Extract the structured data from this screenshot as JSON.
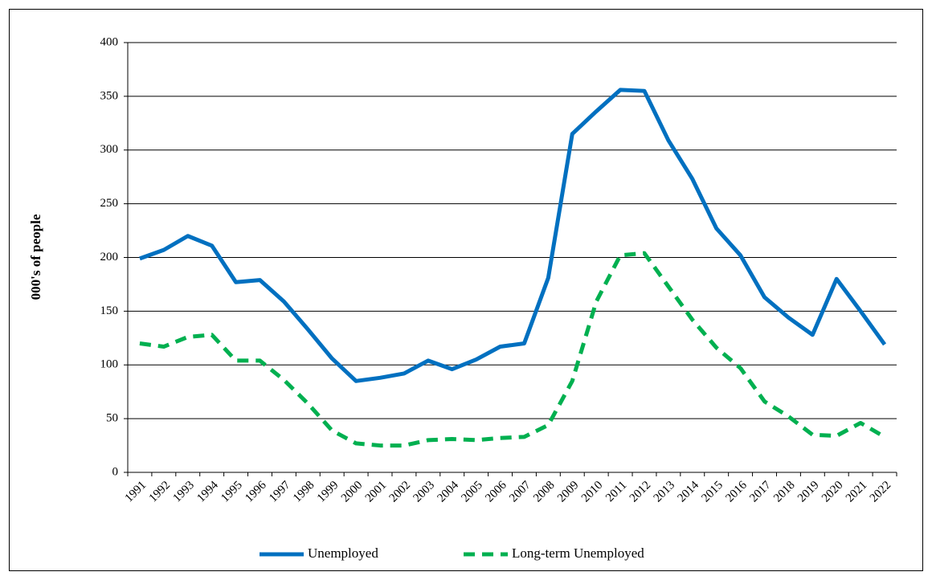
{
  "chart_data": {
    "type": "line",
    "ylabel": "000's of people",
    "categories": [
      "1991",
      "1992",
      "1993",
      "1994",
      "1995",
      "1996",
      "1997",
      "1998",
      "1999",
      "2000",
      "2001",
      "2002",
      "2003",
      "2004",
      "2005",
      "2006",
      "2007",
      "2008",
      "2009",
      "2010",
      "2011",
      "2012",
      "2013",
      "2014",
      "2015",
      "2016",
      "2017",
      "2018",
      "2019",
      "2020",
      "2021",
      "2022"
    ],
    "series": [
      {
        "name": "Unemployed",
        "color": "#0070c0",
        "line_style": "solid",
        "values": [
          199,
          207,
          220,
          211,
          177,
          179,
          159,
          133,
          106,
          85,
          88,
          92,
          104,
          96,
          105,
          117,
          120,
          181,
          315,
          336,
          356,
          355,
          309,
          273,
          227,
          202,
          163,
          144,
          128,
          180,
          150,
          119
        ]
      },
      {
        "name": "Long-term Unemployed",
        "color": "#00b050",
        "line_style": "dashed",
        "values": [
          120,
          117,
          126,
          128,
          104,
          104,
          86,
          64,
          39,
          27,
          25,
          25,
          30,
          31,
          30,
          32,
          33,
          44,
          85,
          159,
          202,
          204,
          173,
          142,
          116,
          97,
          66,
          52,
          35,
          34,
          46,
          33
        ]
      }
    ],
    "ylim": [
      0,
      400
    ],
    "yticks": [
      0,
      50,
      100,
      150,
      200,
      250,
      300,
      350,
      400
    ],
    "grid": true,
    "legend": "bottom"
  }
}
